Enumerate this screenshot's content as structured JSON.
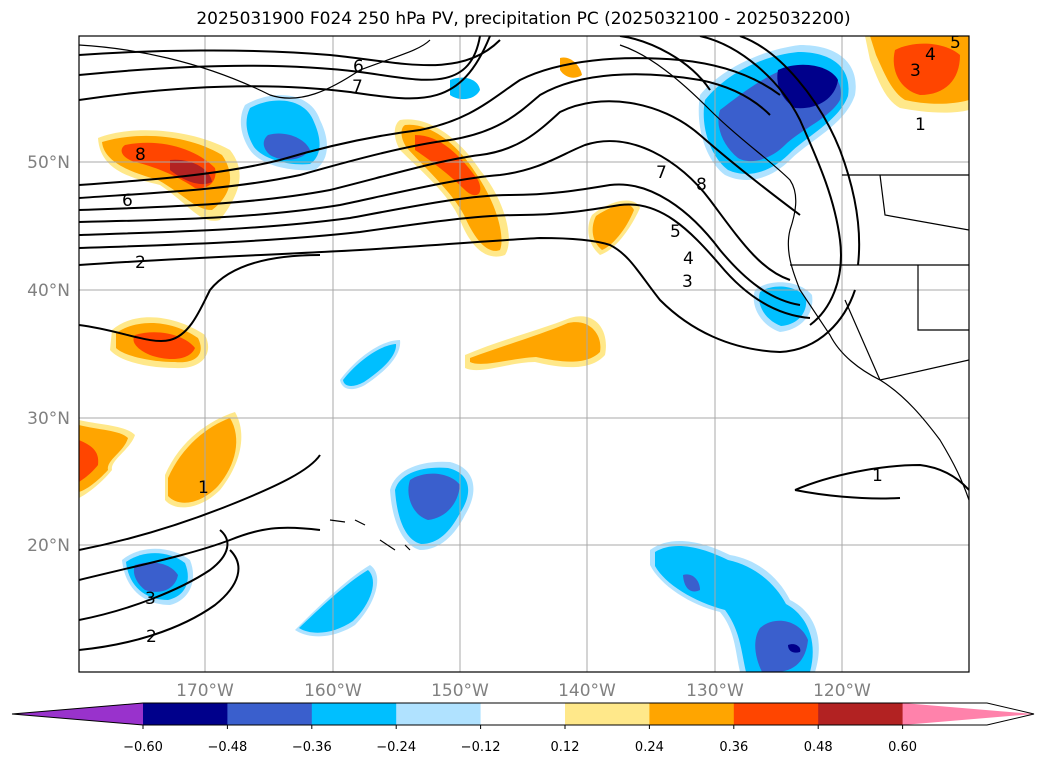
{
  "title": "2025031900 F024 250 hPa PV, precipitation PC (2025032100 - 2025032200)",
  "lat_labels": [
    "50°N",
    "40°N",
    "30°N",
    "20°N"
  ],
  "lon_labels": [
    "170°W",
    "160°W",
    "150°W",
    "140°W",
    "130°W",
    "120°W"
  ],
  "colorbar": {
    "tick_labels": [
      "−0.60",
      "−0.48",
      "−0.36",
      "−0.24",
      "−0.12",
      "0.12",
      "0.24",
      "0.36",
      "0.48",
      "0.60"
    ],
    "colors": [
      "#9932cc",
      "#00008b",
      "#3a5fcd",
      "#00bfff",
      "#b0e2ff",
      "#ffffff",
      "#ffe88a",
      "#ffa500",
      "#ff4500",
      "#b22222",
      "#ff82ab"
    ]
  },
  "contour_labels": [
    "6",
    "7",
    "8",
    "6",
    "2",
    "5",
    "4",
    "3",
    "7",
    "8",
    "1",
    "3",
    "4",
    "5",
    "1",
    "1",
    "2",
    "3"
  ],
  "colors": {
    "pos_light": "#ffe88a",
    "pos_mid": "#ffa500",
    "pos_strong": "#ff4500",
    "pos_max": "#b22222",
    "neg_light": "#b0e2ff",
    "neg_mid": "#00bfff",
    "neg_strong": "#3a5fcd",
    "neg_max": "#00008b"
  }
}
